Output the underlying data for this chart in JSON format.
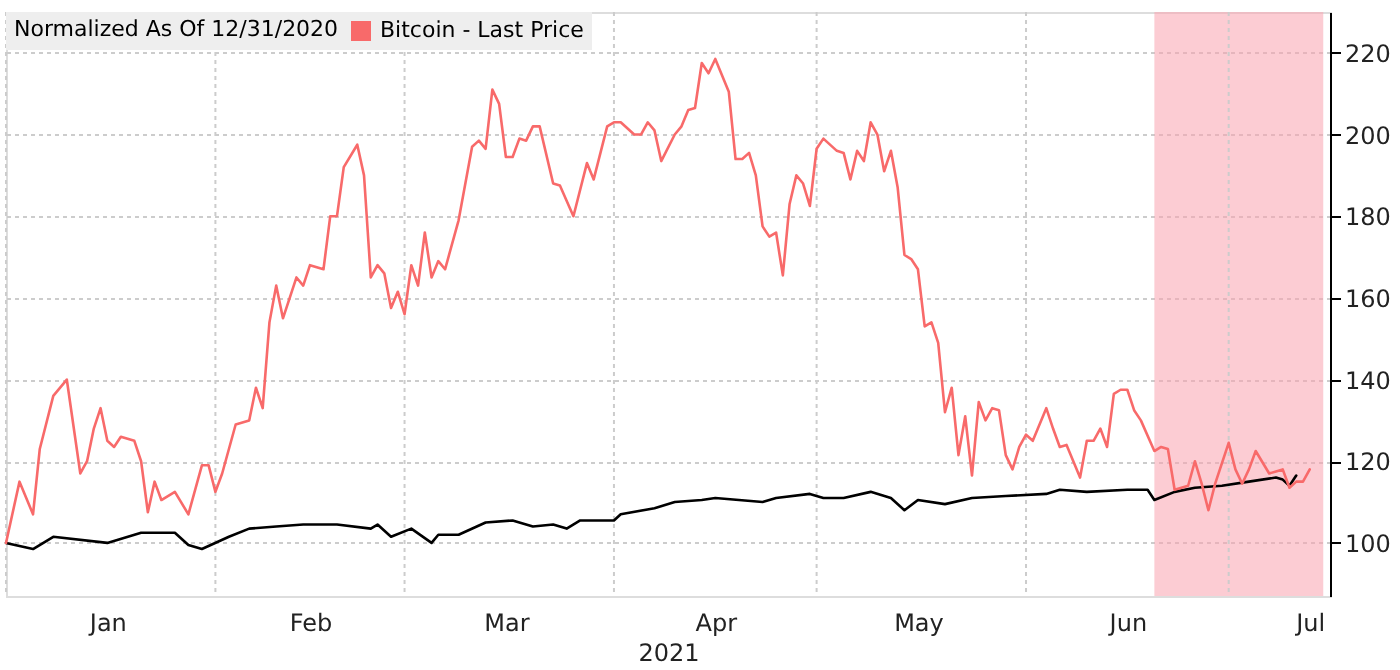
{
  "chart_data": {
    "type": "line",
    "legend_title": "Normalized As Of 12/31/2020",
    "xlabel": "2021",
    "xlim": [
      "2021-01-01",
      "2021-07-16"
    ],
    "xticks": [
      {
        "value": "2021-01-01",
        "label": null
      },
      {
        "value": "2021-01-16",
        "label": "Jan"
      },
      {
        "value": "2021-02-01",
        "label": null
      },
      {
        "value": "2021-02-15",
        "label": "Feb"
      },
      {
        "value": "2021-03-01",
        "label": null
      },
      {
        "value": "2021-03-16",
        "label": "Mar"
      },
      {
        "value": "2021-04-01",
        "label": null
      },
      {
        "value": "2021-04-16",
        "label": "Apr"
      },
      {
        "value": "2021-05-01",
        "label": null
      },
      {
        "value": "2021-05-16",
        "label": "May"
      },
      {
        "value": "2021-06-01",
        "label": null
      },
      {
        "value": "2021-06-16",
        "label": "Jun"
      },
      {
        "value": "2021-07-01",
        "label": null
      },
      {
        "value": "2021-07-13",
        "label": "Jul"
      }
    ],
    "ylim": [
      87,
      230
    ],
    "yticks": [
      100,
      120,
      140,
      160,
      180,
      200,
      220
    ],
    "grid": true,
    "legend": "top left",
    "line_style": "solid",
    "marker": "none",
    "bands": [
      {
        "axis": "x",
        "from": "2021-06-20",
        "to": "2021-07-15",
        "color": "#f9a3ae"
      }
    ],
    "series": [
      {
        "color": "#000000",
        "x": [
          "2021-01-01",
          "2021-01-05",
          "2021-01-08",
          "2021-01-16",
          "2021-01-21",
          "2021-01-26",
          "2021-01-28",
          "2021-01-30",
          "2021-02-03",
          "2021-02-06",
          "2021-02-10",
          "2021-02-14",
          "2021-02-19",
          "2021-02-24",
          "2021-02-25",
          "2021-02-27",
          "2021-03-02",
          "2021-03-05",
          "2021-03-06",
          "2021-03-09",
          "2021-03-13",
          "2021-03-17",
          "2021-03-20",
          "2021-03-23",
          "2021-03-25",
          "2021-03-27",
          "2021-04-01",
          "2021-04-02",
          "2021-04-07",
          "2021-04-10",
          "2021-04-14",
          "2021-04-16",
          "2021-04-23",
          "2021-04-25",
          "2021-04-30",
          "2021-05-02",
          "2021-05-05",
          "2021-05-09",
          "2021-05-12",
          "2021-05-14",
          "2021-05-16",
          "2021-05-20",
          "2021-05-24",
          "2021-05-29",
          "2021-06-04",
          "2021-06-06",
          "2021-06-10",
          "2021-06-16",
          "2021-06-19",
          "2021-06-20",
          "2021-06-23",
          "2021-06-26",
          "2021-06-30",
          "2021-07-04",
          "2021-07-08",
          "2021-07-09",
          "2021-07-10",
          "2021-07-11"
        ],
        "values": [
          100,
          98.5,
          101.5,
          100,
          102.5,
          102.5,
          99.5,
          98.5,
          101.5,
          103.5,
          104,
          104.5,
          104.5,
          103.5,
          104.5,
          101.5,
          103.5,
          100,
          102,
          102,
          105,
          105.5,
          104,
          104.5,
          103.5,
          105.5,
          105.5,
          107,
          108.5,
          110,
          110.5,
          111,
          110,
          111,
          112,
          111,
          111,
          112.5,
          111,
          108,
          110.5,
          109.5,
          111,
          111.5,
          112,
          113,
          112.5,
          113,
          113,
          110.5,
          112.5,
          113.5,
          114,
          115,
          116,
          115.5,
          114,
          116.5
        ]
      },
      {
        "name": "Bitcoin - Last Price",
        "color": "#f86a6a",
        "x": [
          "2021-01-01",
          "2021-01-03",
          "2021-01-05",
          "2021-01-06",
          "2021-01-08",
          "2021-01-10",
          "2021-01-12",
          "2021-01-13",
          "2021-01-14",
          "2021-01-15",
          "2021-01-16",
          "2021-01-17",
          "2021-01-18",
          "2021-01-20",
          "2021-01-21",
          "2021-01-22",
          "2021-01-23",
          "2021-01-24",
          "2021-01-26",
          "2021-01-28",
          "2021-01-30",
          "2021-01-31",
          "2021-02-01",
          "2021-02-02",
          "2021-02-04",
          "2021-02-06",
          "2021-02-07",
          "2021-02-08",
          "2021-02-09",
          "2021-02-10",
          "2021-02-11",
          "2021-02-13",
          "2021-02-14",
          "2021-02-15",
          "2021-02-17",
          "2021-02-18",
          "2021-02-19",
          "2021-02-20",
          "2021-02-22",
          "2021-02-23",
          "2021-02-24",
          "2021-02-25",
          "2021-02-26",
          "2021-02-27",
          "2021-02-28",
          "2021-03-01",
          "2021-03-02",
          "2021-03-03",
          "2021-03-04",
          "2021-03-05",
          "2021-03-06",
          "2021-03-07",
          "2021-03-09",
          "2021-03-11",
          "2021-03-12",
          "2021-03-13",
          "2021-03-14",
          "2021-03-15",
          "2021-03-16",
          "2021-03-17",
          "2021-03-18",
          "2021-03-19",
          "2021-03-20",
          "2021-03-21",
          "2021-03-23",
          "2021-03-24",
          "2021-03-26",
          "2021-03-28",
          "2021-03-29",
          "2021-03-31",
          "2021-04-01",
          "2021-04-02",
          "2021-04-04",
          "2021-04-05",
          "2021-04-06",
          "2021-04-07",
          "2021-04-08",
          "2021-04-10",
          "2021-04-11",
          "2021-04-12",
          "2021-04-13",
          "2021-04-14",
          "2021-04-15",
          "2021-04-16",
          "2021-04-18",
          "2021-04-19",
          "2021-04-20",
          "2021-04-21",
          "2021-04-22",
          "2021-04-23",
          "2021-04-24",
          "2021-04-25",
          "2021-04-26",
          "2021-04-27",
          "2021-04-28",
          "2021-04-29",
          "2021-04-30",
          "2021-05-01",
          "2021-05-02",
          "2021-05-04",
          "2021-05-05",
          "2021-05-06",
          "2021-05-07",
          "2021-05-08",
          "2021-05-09",
          "2021-05-10",
          "2021-05-11",
          "2021-05-12",
          "2021-05-13",
          "2021-05-14",
          "2021-05-15",
          "2021-05-16",
          "2021-05-17",
          "2021-05-18",
          "2021-05-19",
          "2021-05-20",
          "2021-05-21",
          "2021-05-22",
          "2021-05-23",
          "2021-05-24",
          "2021-05-25",
          "2021-05-26",
          "2021-05-27",
          "2021-05-28",
          "2021-05-29",
          "2021-05-30",
          "2021-05-31",
          "2021-06-01",
          "2021-06-02",
          "2021-06-04",
          "2021-06-05",
          "2021-06-06",
          "2021-06-07",
          "2021-06-09",
          "2021-06-10",
          "2021-06-11",
          "2021-06-12",
          "2021-06-13",
          "2021-06-14",
          "2021-06-15",
          "2021-06-16",
          "2021-06-17",
          "2021-06-18",
          "2021-06-20",
          "2021-06-21",
          "2021-06-22",
          "2021-06-23",
          "2021-06-24",
          "2021-06-25",
          "2021-06-26",
          "2021-06-27",
          "2021-06-28",
          "2021-06-29",
          "2021-07-01",
          "2021-07-02",
          "2021-07-03",
          "2021-07-04",
          "2021-07-05",
          "2021-07-07",
          "2021-07-08",
          "2021-07-09",
          "2021-07-10",
          "2021-07-11",
          "2021-07-12",
          "2021-07-13"
        ],
        "values": [
          100,
          115,
          107,
          123,
          136,
          140,
          117,
          120,
          128,
          133,
          125,
          123.5,
          126,
          125,
          120,
          107.5,
          115,
          110.5,
          112.5,
          107,
          119,
          119,
          112.5,
          117,
          129,
          130,
          138,
          133,
          154,
          163,
          155,
          165,
          163,
          168,
          167,
          180,
          180,
          192,
          197.5,
          190,
          165,
          168,
          166,
          157.5,
          161.5,
          156,
          168,
          163,
          176,
          165,
          169,
          167,
          179,
          197,
          198.5,
          196.5,
          211,
          207.5,
          194.5,
          194.5,
          199,
          198.5,
          202,
          202,
          188,
          187.5,
          180,
          193,
          189,
          202,
          203,
          203,
          200,
          200,
          203,
          201,
          193.5,
          200,
          202,
          206,
          206.5,
          217.5,
          215,
          218.5,
          210.5,
          194,
          194,
          195.5,
          190,
          177.5,
          175,
          176,
          165.5,
          183,
          190,
          188,
          182.5,
          196.5,
          199,
          196,
          195.5,
          189,
          196,
          193.5,
          203,
          200,
          191,
          196,
          187,
          170.5,
          169.5,
          167,
          153,
          154,
          149,
          132,
          138,
          121.5,
          131,
          116.5,
          134.5,
          130,
          133,
          132.5,
          121.5,
          118,
          123.5,
          126.5,
          125,
          133,
          128,
          123.5,
          124,
          116,
          125,
          125,
          128,
          123.5,
          136.5,
          137.5,
          137.5,
          132.5,
          130,
          122.5,
          123.5,
          123,
          113,
          113.5,
          114,
          120,
          114.5,
          108,
          114.5,
          124.5,
          118,
          114.5,
          118,
          122.5,
          117,
          117.5,
          118,
          113.5,
          115,
          115,
          118
        ]
      }
    ]
  }
}
